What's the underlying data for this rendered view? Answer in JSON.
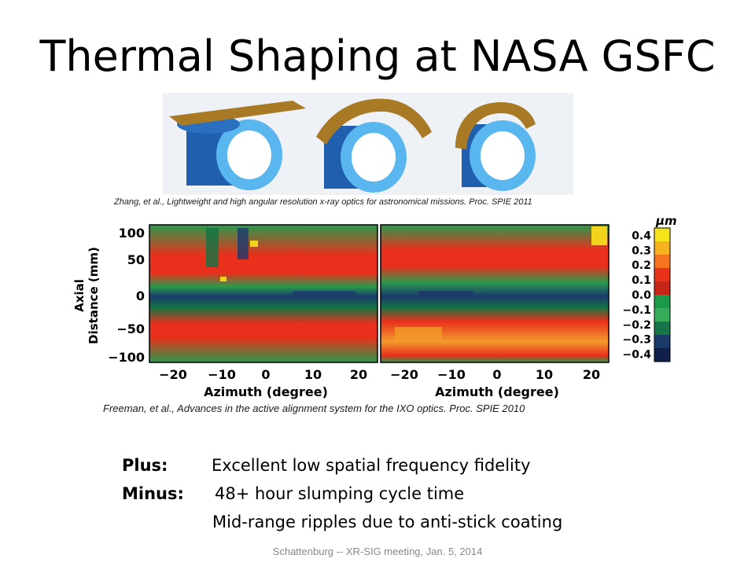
{
  "slide": {
    "title": "Thermal Shaping at NASA GSFC",
    "caption_top": "Zhang, et al., Lightweight and high angular resolution x-ray optics for astronomical missions. Proc. SPIE 2011",
    "caption_bottom": "Freeman, et al., Advances in the active alignment system for the IXO optics. Proc. SPIE 2010",
    "plus_label": "Plus:",
    "plus_text": "Excellent low spatial frequency fidelity",
    "minus_label": "Minus:",
    "minus_text_1": "48+ hour slumping cycle time",
    "minus_text_2": "Mid-range ripples due to anti-stick coating",
    "footer": "Schattenburg -- XR-SIG meeting, Jan. 5, 2014"
  },
  "figure_map": {
    "ylabel_1": "Axial",
    "ylabel_2": "Distance (mm)",
    "xlabel_left": "Azimuth (degree)",
    "xlabel_right": "Azimuth (degree)",
    "y_ticks": [
      "100",
      "50",
      "0",
      "−50",
      "−100"
    ],
    "x_ticks": [
      "−20",
      "−10",
      "0",
      "10",
      "20"
    ],
    "colorbar_unit": "μm",
    "colorbar_ticks": [
      "0.4",
      "0.3",
      "0.2",
      "0.1",
      "0.0",
      "−0.1",
      "−0.2",
      "−0.3",
      "−0.4"
    ],
    "colorbar_colors": [
      "#f7e31a",
      "#f7b21f",
      "#f7741f",
      "#e8321a",
      "#c92418",
      "#1a9a4a",
      "#36ac5a",
      "#177447",
      "#1a3a6a",
      "#10204a"
    ],
    "map_colors": {
      "red": "#e8301c",
      "green": "#2a9a4c",
      "dark_green": "#137343",
      "blue": "#1b3a6d",
      "yellow": "#f2d41c",
      "orange": "#f29a2c"
    }
  },
  "figure_cylinders": {
    "tube_outer_color": "#2f7ed0",
    "tube_inner_color": "#5ab6ee",
    "sheet_color": "#a87a26"
  }
}
